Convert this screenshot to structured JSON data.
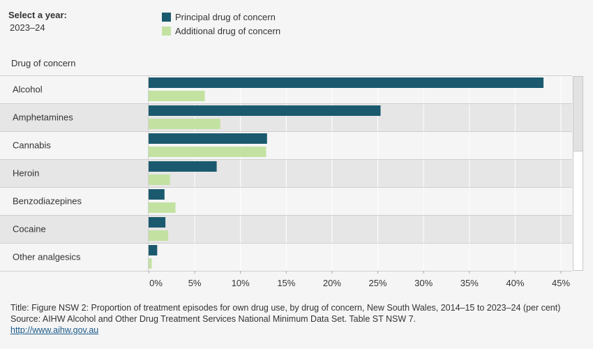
{
  "filter": {
    "label": "Select a year:",
    "value": "2023–24"
  },
  "legend": [
    {
      "name": "Principal drug of concern",
      "color": "#1b5a6e"
    },
    {
      "name": "Additional drug of concern",
      "color": "#c3e2a2"
    }
  ],
  "row_header": "Drug of concern",
  "chart_data": {
    "type": "bar",
    "orientation": "horizontal",
    "categories": [
      "Alcohol",
      "Amphetamines",
      "Cannabis",
      "Heroin",
      "Benzodiazepines",
      "Cocaine",
      "Other analgesics"
    ],
    "series": [
      {
        "name": "Principal drug of concern",
        "color": "#1b5a6e",
        "values": [
          43.1,
          25.3,
          12.9,
          7.4,
          1.7,
          1.8,
          0.9
        ]
      },
      {
        "name": "Additional drug of concern",
        "color": "#c3e2a2",
        "values": [
          6.1,
          7.8,
          12.8,
          2.3,
          2.9,
          2.1,
          0.3
        ]
      }
    ],
    "xlim": [
      0,
      45
    ],
    "ticks": [
      0,
      5,
      10,
      15,
      20,
      25,
      30,
      35,
      40,
      45
    ],
    "tick_labels": [
      "0%",
      "5%",
      "10%",
      "15%",
      "20%",
      "25%",
      "30%",
      "35%",
      "40%",
      "45%"
    ],
    "grid": true,
    "legend_position": "top"
  },
  "footer": {
    "title": "Title: Figure NSW 2: Proportion of treatment episodes for own drug use, by drug of concern, New South Wales, 2014–15 to 2023–24 (per cent)",
    "source": "Source: AIHW Alcohol and Other Drug Treatment Services National Minimum Data Set. Table ST NSW 7.",
    "link": "http://www.aihw.gov.au"
  }
}
